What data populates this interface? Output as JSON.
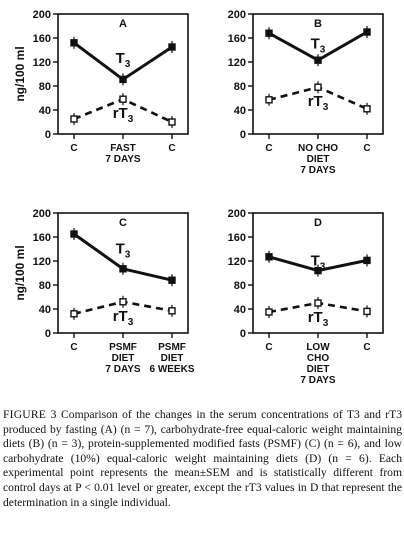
{
  "chart_data": [
    {
      "type": "line",
      "panel": "A",
      "ylabel": "ng/100 ml",
      "ylim": [
        0,
        200
      ],
      "yticks": [
        0,
        40,
        80,
        120,
        160,
        200
      ],
      "categories": [
        [
          "C"
        ],
        [
          "FAST",
          "7 DAYS"
        ],
        [
          "C"
        ]
      ],
      "series": [
        {
          "name": "T3",
          "style": "solid",
          "marker": "filled-square",
          "values": [
            152,
            91,
            145
          ]
        },
        {
          "name": "rT3",
          "style": "dashed",
          "marker": "open-square",
          "values": [
            25,
            58,
            20
          ]
        }
      ]
    },
    {
      "type": "line",
      "panel": "B",
      "ylabel": "",
      "ylim": [
        0,
        200
      ],
      "yticks": [
        0,
        40,
        80,
        120,
        160,
        200
      ],
      "categories": [
        [
          "C"
        ],
        [
          "NO CHO",
          "DIET",
          "7 DAYS"
        ],
        [
          "C"
        ]
      ],
      "series": [
        {
          "name": "T3",
          "style": "solid",
          "marker": "filled-square",
          "values": [
            168,
            123,
            170
          ]
        },
        {
          "name": "rT3",
          "style": "dashed",
          "marker": "open-square",
          "values": [
            57,
            78,
            42
          ]
        }
      ]
    },
    {
      "type": "line",
      "panel": "C",
      "ylabel": "ng/100 ml",
      "ylim": [
        0,
        200
      ],
      "yticks": [
        0,
        40,
        80,
        120,
        160,
        200
      ],
      "categories": [
        [
          "C"
        ],
        [
          "PSMF",
          "DIET",
          "7 DAYS"
        ],
        [
          "PSMF",
          "DIET",
          "6 WEEKS"
        ]
      ],
      "series": [
        {
          "name": "T3",
          "style": "solid",
          "marker": "filled-square",
          "values": [
            165,
            107,
            88
          ]
        },
        {
          "name": "rT3",
          "style": "dashed",
          "marker": "open-square",
          "values": [
            32,
            52,
            37
          ]
        }
      ]
    },
    {
      "type": "line",
      "panel": "D",
      "ylabel": "",
      "ylim": [
        0,
        200
      ],
      "yticks": [
        0,
        40,
        80,
        120,
        160,
        200
      ],
      "categories": [
        [
          "C"
        ],
        [
          "LOW",
          "CHO",
          "DIET",
          "7 DAYS"
        ],
        [
          "C"
        ]
      ],
      "series": [
        {
          "name": "T3",
          "style": "solid",
          "marker": "filled-square",
          "values": [
            127,
            104,
            121
          ]
        },
        {
          "name": "rT3",
          "style": "dashed",
          "marker": "open-square",
          "values": [
            35,
            50,
            36
          ]
        }
      ]
    }
  ],
  "caption": {
    "label": "FIGURE 3",
    "text": "Comparison of the changes in the serum concentrations of T3 and rT3 produced by fasting (A) (n = 7), carbohydrate-free equal-caloric weight maintaining diets (B) (n = 3), protein-supplemented modified fasts (PSMF) (C) (n = 6), and low carbohydrate (10%) equal-caloric weight maintaining diets (D) (n = 6). Each experimental point represents the mean±SEM and is statistically different from control days at P < 0.01 level or greater, except the rT3 values in D that represent the determination in a single individual."
  },
  "colors": {
    "ink": "#111111",
    "paper": "#ffffff"
  }
}
